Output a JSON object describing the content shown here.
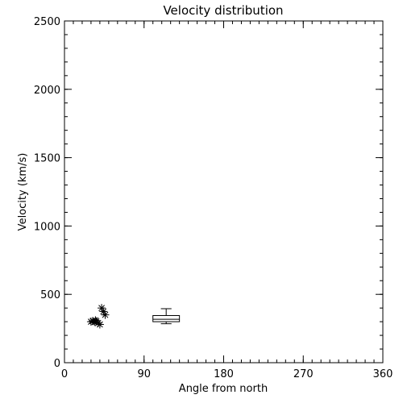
{
  "chart_data": {
    "type": "scatter",
    "title": "Velocity distribution",
    "xlabel": "Angle from north",
    "ylabel": "Velocity (km/s)",
    "xlim": [
      0,
      360
    ],
    "ylim": [
      0,
      2500
    ],
    "xticks": [
      0,
      90,
      180,
      270,
      360
    ],
    "yticks": [
      0,
      500,
      1000,
      1500,
      2000,
      2500
    ],
    "x_minor_step": 10,
    "y_minor_step": 100,
    "grid": false,
    "marker": "asterisk",
    "points": [
      {
        "x": 30,
        "y": 300
      },
      {
        "x": 32,
        "y": 305
      },
      {
        "x": 34,
        "y": 298
      },
      {
        "x": 35,
        "y": 310
      },
      {
        "x": 36,
        "y": 302
      },
      {
        "x": 38,
        "y": 290
      },
      {
        "x": 40,
        "y": 280
      },
      {
        "x": 42,
        "y": 400
      },
      {
        "x": 44,
        "y": 375
      },
      {
        "x": 46,
        "y": 350
      }
    ],
    "boxplot": {
      "x": 115,
      "width": 30,
      "whisker_low": 285,
      "q1": 300,
      "median": 318,
      "q3": 345,
      "whisker_high": 395
    },
    "colors": {
      "foreground": "#000000",
      "background": "#ffffff"
    }
  }
}
